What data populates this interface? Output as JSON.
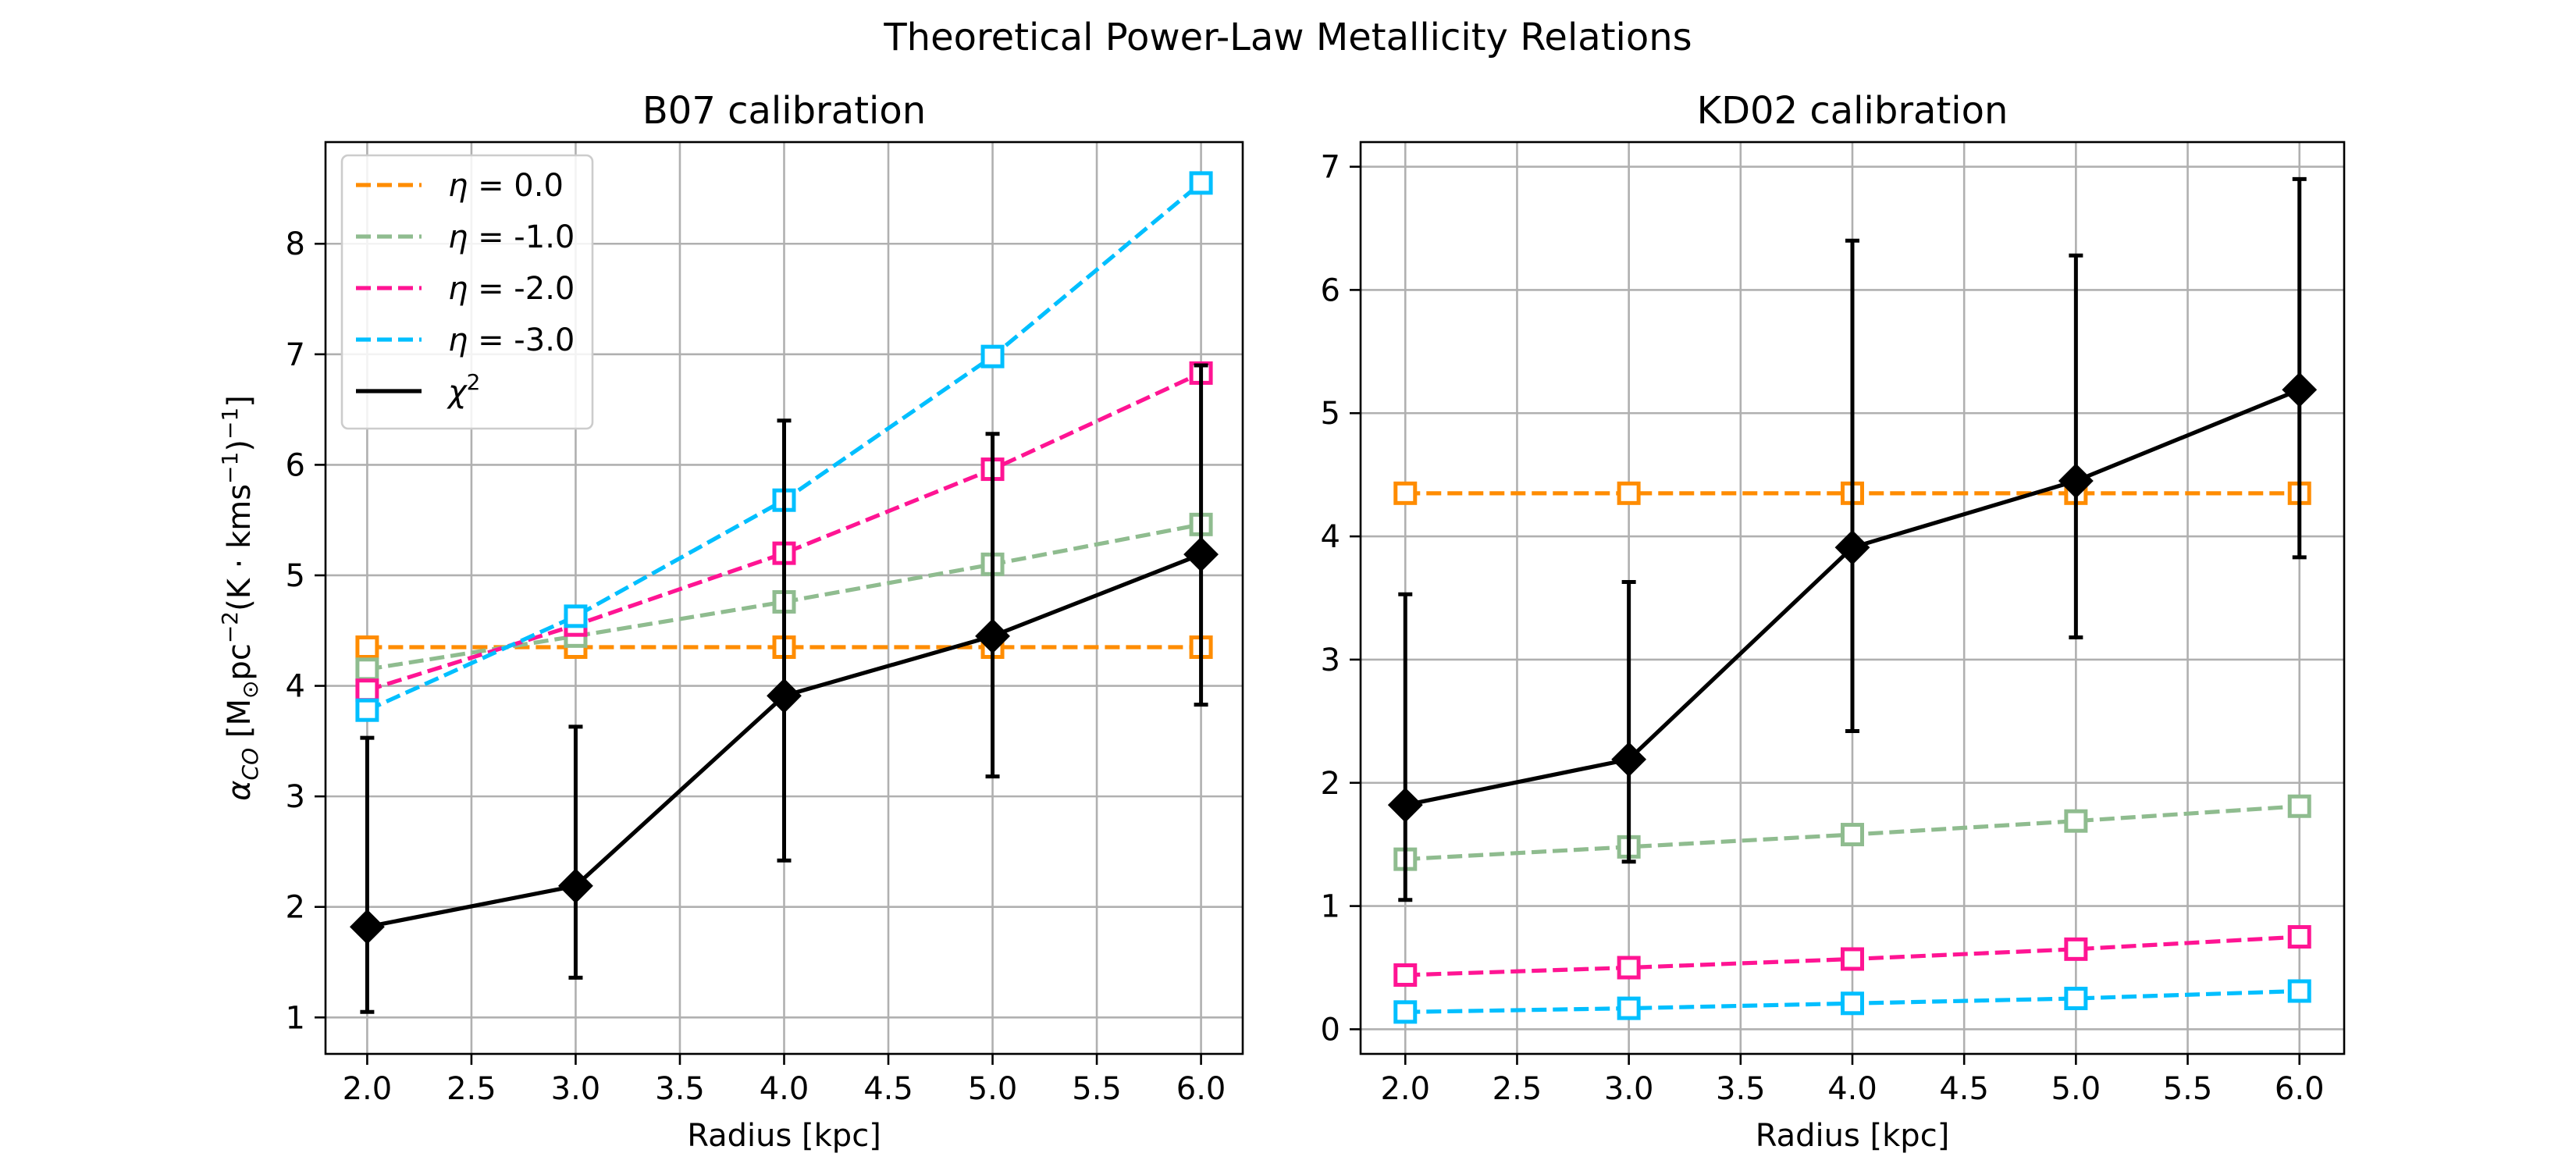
{
  "title": "Theoretical Power-Law Metallicity Relations",
  "colors": {
    "eta_0": "#ff8c00",
    "eta_1": "#8fbc8f",
    "eta_2": "#ff1493",
    "eta_3": "#00bfff",
    "chi2": "#000000"
  },
  "legend": {
    "items": [
      {
        "symbol": "η",
        "label": " = 0.0",
        "color": "#ff8c00",
        "style": "dashed"
      },
      {
        "symbol": "η",
        "label": " = -1.0",
        "color": "#8fbc8f",
        "style": "dashed"
      },
      {
        "symbol": "η",
        "label": " = -2.0",
        "color": "#ff1493",
        "style": "dashed"
      },
      {
        "symbol": "η",
        "label": " = -3.0",
        "color": "#00bfff",
        "style": "dashed"
      },
      {
        "symbol": "χ",
        "sup": "2",
        "label": "",
        "color": "#000000",
        "style": "solid"
      }
    ]
  },
  "chart_data": [
    {
      "type": "line",
      "title": "B07 calibration",
      "xlabel": "Radius [kpc]",
      "ylabel": "α_CO [M☉pc⁻²(K·kms⁻¹)⁻¹]",
      "ylabel_parts": {
        "alpha": "α",
        "sub": "CO",
        "bracket": " [M",
        "sun": "⊙",
        "pc": "pc",
        "exp1": "−2",
        "k": "(K · kms",
        "exp2": "−1",
        "close": ")",
        "exp3": "−1",
        "end": "]"
      },
      "xlim": [
        1.8,
        6.2
      ],
      "ylim": [
        0.67,
        8.92
      ],
      "xticks": [
        2.0,
        2.5,
        3.0,
        3.5,
        4.0,
        4.5,
        5.0,
        5.5,
        6.0
      ],
      "xtick_labels": [
        "2.0",
        "2.5",
        "3.0",
        "3.5",
        "4.0",
        "4.5",
        "5.0",
        "5.5",
        "6.0"
      ],
      "yticks": [
        1,
        2,
        3,
        4,
        5,
        6,
        7,
        8
      ],
      "ytick_labels": [
        "1",
        "2",
        "3",
        "4",
        "5",
        "6",
        "7",
        "8"
      ],
      "grid": true,
      "legend_position": "upper-left",
      "x": [
        2.0,
        3.0,
        4.0,
        5.0,
        6.0
      ],
      "series": [
        {
          "name": "η = 0.0",
          "color": "#ff8c00",
          "style": "dashed",
          "marker": "square",
          "values": [
            4.35,
            4.35,
            4.35,
            4.35,
            4.35
          ]
        },
        {
          "name": "η = -1.0",
          "color": "#8fbc8f",
          "style": "dashed",
          "marker": "square",
          "values": [
            4.15,
            4.45,
            4.76,
            5.1,
            5.46
          ]
        },
        {
          "name": "η = -2.0",
          "color": "#ff1493",
          "style": "dashed",
          "marker": "square",
          "values": [
            3.96,
            4.55,
            5.2,
            5.96,
            6.83
          ]
        },
        {
          "name": "η = -3.0",
          "color": "#00bfff",
          "style": "dashed",
          "marker": "square",
          "values": [
            3.78,
            4.63,
            5.68,
            6.98,
            8.55
          ]
        },
        {
          "name": "χ²",
          "color": "#000000",
          "style": "solid",
          "marker": "diamond",
          "values": [
            1.82,
            2.19,
            3.91,
            4.45,
            5.19
          ],
          "err_low": [
            1.05,
            1.36,
            2.42,
            3.18,
            3.83
          ],
          "err_high": [
            3.53,
            3.63,
            6.4,
            6.28,
            6.9
          ]
        }
      ]
    },
    {
      "type": "line",
      "title": "KD02 calibration",
      "xlabel": "Radius [kpc]",
      "ylabel": "",
      "xlim": [
        1.8,
        6.2
      ],
      "ylim": [
        -0.2,
        7.2
      ],
      "xticks": [
        2.0,
        2.5,
        3.0,
        3.5,
        4.0,
        4.5,
        5.0,
        5.5,
        6.0
      ],
      "xtick_labels": [
        "2.0",
        "2.5",
        "3.0",
        "3.5",
        "4.0",
        "4.5",
        "5.0",
        "5.5",
        "6.0"
      ],
      "yticks": [
        0,
        1,
        2,
        3,
        4,
        5,
        6,
        7
      ],
      "ytick_labels": [
        "0",
        "1",
        "2",
        "3",
        "4",
        "5",
        "6",
        "7"
      ],
      "grid": true,
      "x": [
        2.0,
        3.0,
        4.0,
        5.0,
        6.0
      ],
      "series": [
        {
          "name": "η = 0.0",
          "color": "#ff8c00",
          "style": "dashed",
          "marker": "square",
          "values": [
            4.35,
            4.35,
            4.35,
            4.35,
            4.35
          ]
        },
        {
          "name": "η = -1.0",
          "color": "#8fbc8f",
          "style": "dashed",
          "marker": "square",
          "values": [
            1.38,
            1.48,
            1.58,
            1.69,
            1.81
          ]
        },
        {
          "name": "η = -2.0",
          "color": "#ff1493",
          "style": "dashed",
          "marker": "square",
          "values": [
            0.44,
            0.5,
            0.57,
            0.65,
            0.75
          ]
        },
        {
          "name": "η = -3.0",
          "color": "#00bfff",
          "style": "dashed",
          "marker": "square",
          "values": [
            0.14,
            0.17,
            0.21,
            0.25,
            0.31
          ]
        },
        {
          "name": "χ²",
          "color": "#000000",
          "style": "solid",
          "marker": "diamond",
          "values": [
            1.82,
            2.19,
            3.91,
            4.45,
            5.19
          ],
          "err_low": [
            1.05,
            1.36,
            2.42,
            3.18,
            3.83
          ],
          "err_high": [
            3.53,
            3.63,
            6.4,
            6.28,
            6.9
          ]
        }
      ]
    }
  ]
}
